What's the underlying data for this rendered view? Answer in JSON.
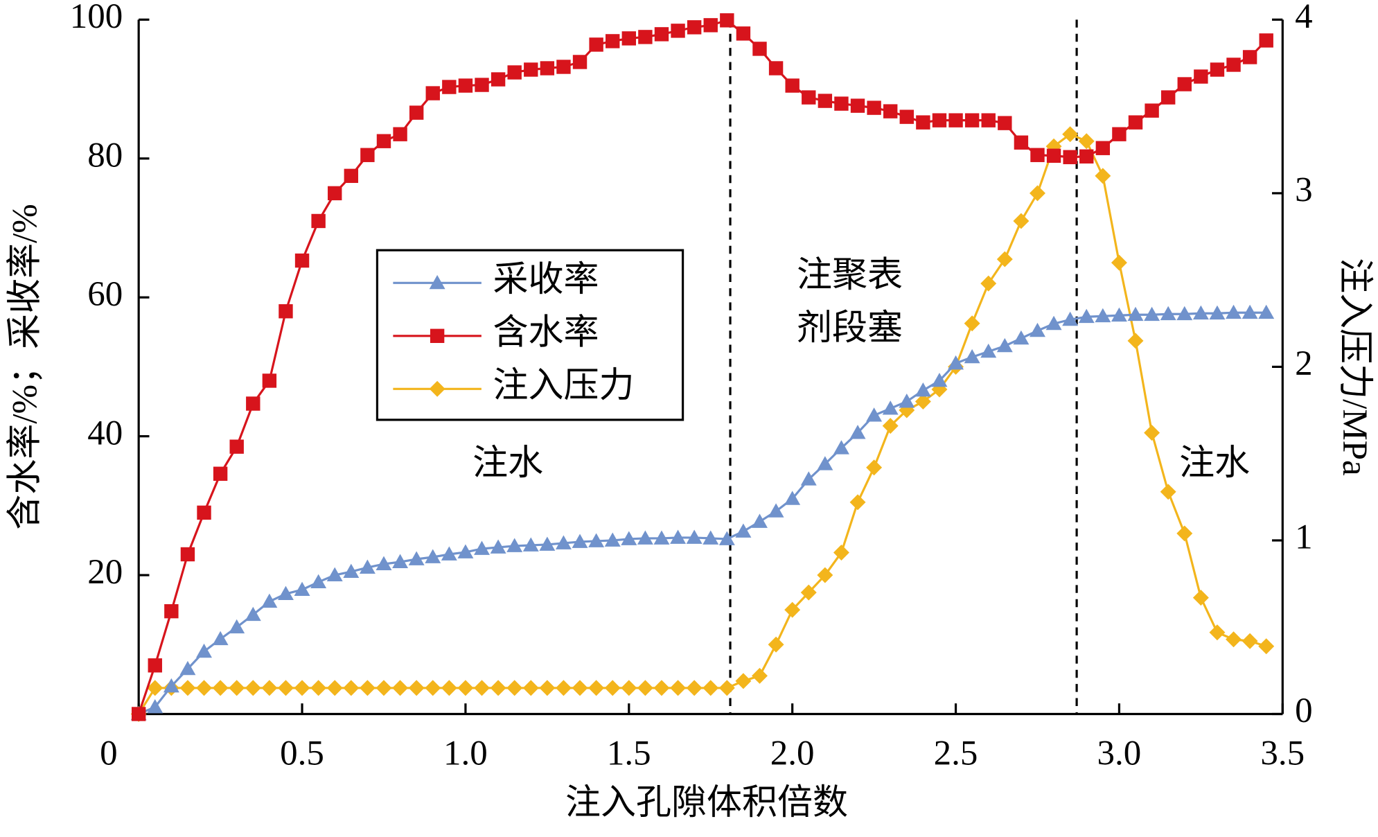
{
  "chart_data": {
    "type": "line",
    "x_label": "注入孔隙体积倍数",
    "y_label": "含水率/%；采收率/%",
    "y2_label": "注入压力/MPa",
    "annotations": [
      "注水",
      "注聚表",
      "剂段塞",
      "注水"
    ],
    "vlines": [
      1.81,
      2.87
    ],
    "xlim": [
      0,
      3.5
    ],
    "xticks": [
      0,
      0.5,
      {
        "value": 1,
        "label": "1.0"
      },
      1.5,
      {
        "value": 2,
        "label": "2.0"
      },
      2.5,
      {
        "value": 3,
        "label": "3.0"
      },
      3.5
    ],
    "ylim": [
      0,
      100
    ],
    "yticks": [
      20,
      40,
      60,
      80,
      100
    ],
    "y2lim": [
      0,
      4
    ],
    "y2ticks": [
      0,
      1,
      2,
      3,
      4
    ],
    "x": [
      0,
      0.05,
      0.1,
      0.15,
      0.2,
      0.25,
      0.3,
      0.35,
      0.4,
      0.45,
      0.5,
      0.55,
      0.6,
      0.65,
      0.7,
      0.75,
      0.8,
      0.85,
      0.9,
      0.95,
      1,
      1.05,
      1.1,
      1.15,
      1.2,
      1.25,
      1.3,
      1.35,
      1.4,
      1.45,
      1.5,
      1.55,
      1.6,
      1.65,
      1.7,
      1.75,
      1.8,
      1.85,
      1.9,
      1.95,
      2,
      2.05,
      2.1,
      2.15,
      2.2,
      2.25,
      2.3,
      2.35,
      2.4,
      2.45,
      2.5,
      2.55,
      2.6,
      2.65,
      2.7,
      2.75,
      2.8,
      2.85,
      2.9,
      2.95,
      3,
      3.05,
      3.1,
      3.15,
      3.2,
      3.25,
      3.3,
      3.35,
      3.4,
      3.45
    ],
    "series": [
      {
        "name": "采收率",
        "color": "#7092cc",
        "marker": "triangle",
        "values": [
          0,
          1,
          4,
          6.5,
          9,
          10.8,
          12.5,
          14.3,
          16.2,
          17.3,
          17.9,
          19,
          20,
          20.5,
          21.1,
          21.6,
          21.9,
          22.3,
          22.6,
          23,
          23.3,
          23.8,
          24,
          24.2,
          24.3,
          24.4,
          24.6,
          24.8,
          24.9,
          25,
          25.2,
          25.3,
          25.3,
          25.4,
          25.4,
          25.3,
          25.2,
          26.3,
          27.7,
          29.2,
          31,
          33.8,
          36,
          38.3,
          40.5,
          43,
          44,
          45,
          46.6,
          48,
          50.5,
          51.4,
          52.2,
          53,
          54.1,
          55.2,
          56.2,
          56.8,
          57.2,
          57.3,
          57.4,
          57.5,
          57.5,
          57.6,
          57.6,
          57.7,
          57.7,
          57.8,
          57.8,
          57.8
        ]
      },
      {
        "name": "含水率",
        "color": "#d7141c",
        "marker": "square",
        "values": [
          0,
          7,
          14.8,
          23,
          29,
          34.6,
          38.5,
          44.7,
          48,
          58,
          65.3,
          71,
          75,
          77.5,
          80.5,
          82.5,
          83.5,
          86.6,
          89.4,
          90.3,
          90.5,
          90.6,
          91.4,
          92.4,
          92.8,
          93,
          93.2,
          93.9,
          96.4,
          96.9,
          97.3,
          97.5,
          97.9,
          98.4,
          98.9,
          99.2,
          99.9,
          98,
          95.8,
          93,
          90.5,
          88.8,
          88.3,
          87.9,
          87.6,
          87.3,
          86.8,
          86,
          85.2,
          85.5,
          85.5,
          85.5,
          85.5,
          85.1,
          82.3,
          80.5,
          80.4,
          80.2,
          80.3,
          81.5,
          83.5,
          85.2,
          86.9,
          88.8,
          90.7,
          91.8,
          92.8,
          93.5,
          94.6,
          97
        ]
      },
      {
        "name": "注入压力",
        "color": "#f3b51c",
        "marker": "diamond",
        "axis": "y2",
        "values": [
          0,
          0.15,
          0.15,
          0.15,
          0.15,
          0.15,
          0.15,
          0.15,
          0.15,
          0.15,
          0.15,
          0.15,
          0.15,
          0.15,
          0.15,
          0.15,
          0.15,
          0.15,
          0.15,
          0.15,
          0.15,
          0.15,
          0.15,
          0.15,
          0.15,
          0.15,
          0.15,
          0.15,
          0.15,
          0.15,
          0.15,
          0.15,
          0.15,
          0.15,
          0.15,
          0.15,
          0.15,
          0.19,
          0.22,
          0.4,
          0.6,
          0.7,
          0.8,
          0.93,
          1.22,
          1.42,
          1.66,
          1.75,
          1.8,
          1.87,
          2.0,
          2.25,
          2.48,
          2.62,
          2.84,
          3.0,
          3.27,
          3.34,
          3.3,
          3.1,
          2.6,
          2.15,
          1.62,
          1.28,
          1.04,
          0.67,
          0.47,
          0.43,
          0.42,
          0.39
        ]
      }
    ]
  }
}
